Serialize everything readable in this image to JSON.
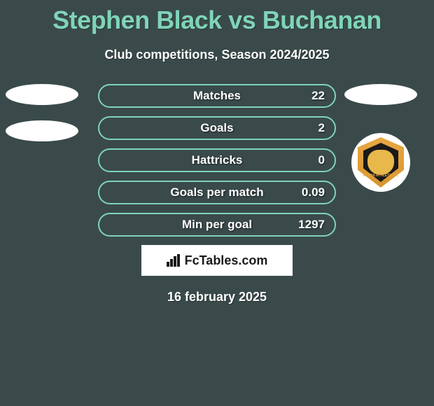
{
  "title": "Stephen Black vs Buchanan",
  "subtitle": "Club competitions, Season 2024/2025",
  "date": "16 february 2025",
  "branding": "FcTables.com",
  "colors": {
    "background": "#3a4a4a",
    "accent": "#7fd4b8",
    "text": "#ffffff",
    "badge_gold": "#e8a842"
  },
  "crest_label": "ALLOA ATHLETIC FC",
  "stats": [
    {
      "label": "Matches",
      "value": "22"
    },
    {
      "label": "Goals",
      "value": "2"
    },
    {
      "label": "Hattricks",
      "value": "0"
    },
    {
      "label": "Goals per match",
      "value": "0.09"
    },
    {
      "label": "Min per goal",
      "value": "1297"
    }
  ]
}
